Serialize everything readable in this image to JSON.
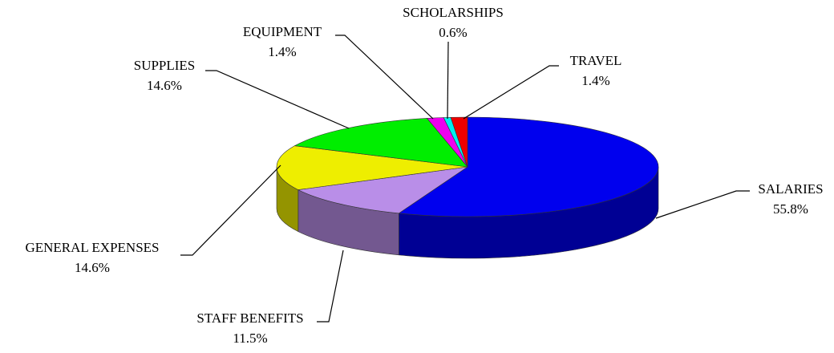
{
  "chart_data": {
    "type": "pie",
    "categories": [
      "SALARIES",
      "STAFF BENEFITS",
      "GENERAL EXPENSES",
      "SUPPLIES",
      "EQUIPMENT",
      "SCHOLARSHIPS",
      "TRAVEL"
    ],
    "values": [
      55.8,
      11.5,
      14.6,
      14.6,
      1.4,
      0.6,
      1.4
    ],
    "value_labels": [
      "55.8%",
      "11.5%",
      "14.6%",
      "14.6%",
      "1.4%",
      "0.6%",
      "1.4%"
    ],
    "colors": [
      "#0000ee",
      "#b98ee8",
      "#eeee00",
      "#00ee00",
      "#ee00ee",
      "#00eeee",
      "#ee0000"
    ]
  }
}
